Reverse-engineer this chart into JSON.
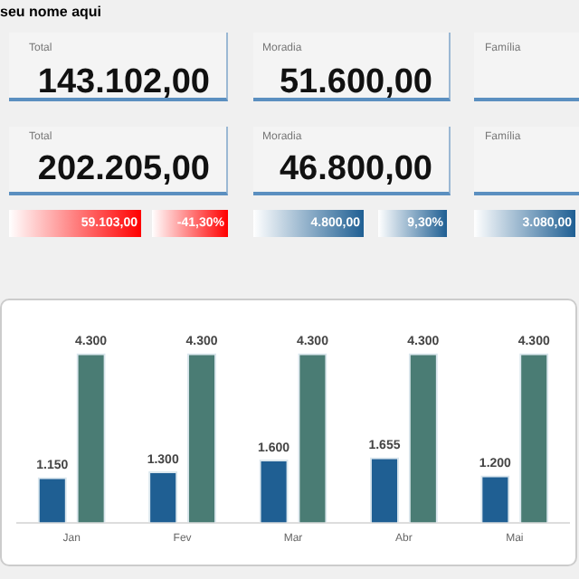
{
  "chart_data": [
    {
      "type": "other",
      "title": "seu nome aqui",
      "annotations": [
        "Total",
        "143.102,00",
        "Moradia",
        "51.600,00",
        "Família",
        "Total",
        "202.205,00",
        "Moradia",
        "46.800,00",
        "Família",
        "59.103,00",
        "-41,30%",
        "4.800,00",
        "9,30%",
        "3.080,00"
      ]
    },
    {
      "type": "bar",
      "categories": [
        "Jan",
        "Fev",
        "Mar",
        "Abr",
        "Mai"
      ],
      "series": [
        {
          "color": "#1f5f93",
          "values": [
            1150,
            1300,
            1600,
            1655,
            1200
          ],
          "value_labels": [
            "1.150",
            "1.300",
            "1.600",
            "1.655",
            "1.200"
          ]
        },
        {
          "color": "#4a7c74",
          "values": [
            4300,
            4300,
            4300,
            4300,
            4300
          ],
          "value_labels": [
            "4.300",
            "4.300",
            "4.300",
            "4.300",
            "4.300"
          ]
        }
      ],
      "grid": false,
      "legend": false
    }
  ]
}
